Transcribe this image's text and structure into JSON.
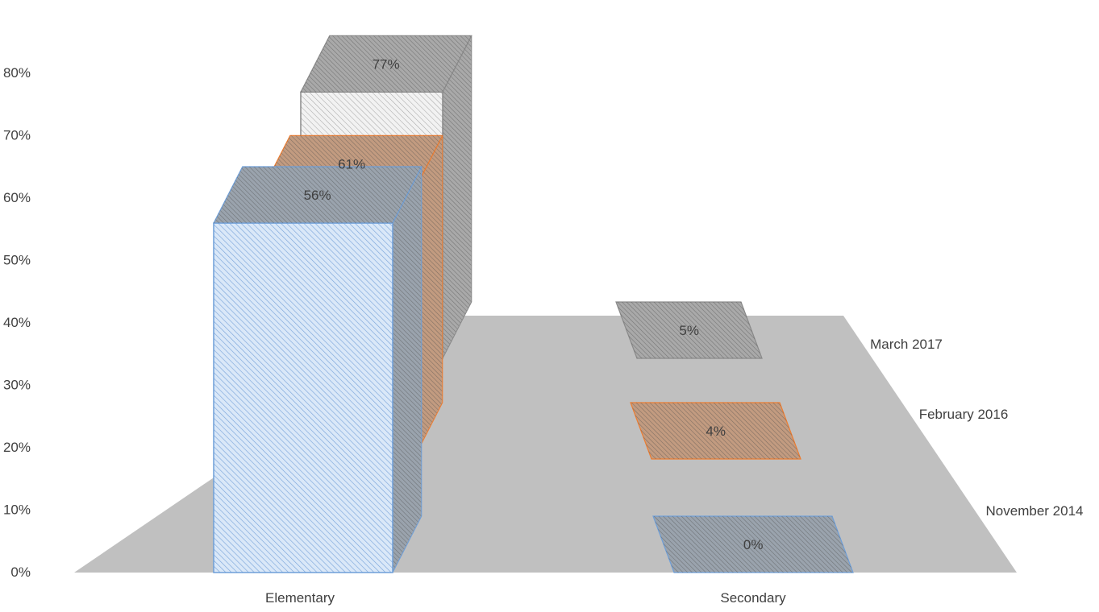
{
  "chart_data": {
    "type": "bar",
    "variant": "3d-column",
    "categories": [
      "Elementary",
      "Secondary"
    ],
    "series": [
      {
        "name": "November 2014",
        "values": [
          56,
          0
        ],
        "labels": [
          "56%",
          "0%"
        ]
      },
      {
        "name": "February 2016",
        "values": [
          61,
          4
        ],
        "labels": [
          "61%",
          "4%"
        ]
      },
      {
        "name": "March 2017",
        "values": [
          77,
          5
        ],
        "labels": [
          "77%",
          "5%"
        ]
      }
    ],
    "y_ticks": [
      "0%",
      "10%",
      "20%",
      "30%",
      "40%",
      "50%",
      "60%",
      "70%",
      "80%"
    ],
    "ylim": [
      0,
      80
    ],
    "grid": false,
    "depth_axis_labels_placement": "right",
    "colors": {
      "floor": "#c0c0c0",
      "series_fill": [
        "#dae8f8",
        "#f3b584",
        "#f2f2f2"
      ],
      "series_stroke": [
        "#6f9fd8",
        "#ed7d31",
        "#8a8a8a"
      ],
      "series_side": [
        "#9aa3ad",
        "#c29b80",
        "#a9a9a9"
      ],
      "hatch": "#6a6a6a",
      "text": "#404040"
    }
  }
}
